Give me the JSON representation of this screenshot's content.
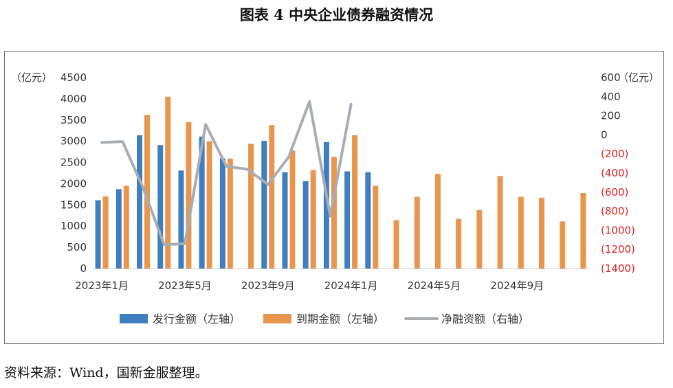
{
  "title": "图表 4  中央企业债券融资情况",
  "source": "资料来源：Wind，国新金服整理。",
  "colors": {
    "issue": "#3f7fbf",
    "maturity": "#e8954e",
    "net": "#a8adb4",
    "axis_text": "#333333",
    "negative_text": "#e02020"
  },
  "chart_data": {
    "type": "bar",
    "categories": [
      "2023-01",
      "2023-02",
      "2023-03",
      "2023-04",
      "2023-05",
      "2023-06",
      "2023-07",
      "2023-08",
      "2023-09",
      "2023-10",
      "2023-11",
      "2023-12",
      "2024-01",
      "2024-02",
      "2024-03",
      "2024-04",
      "2024-05",
      "2024-06",
      "2024-07",
      "2024-08",
      "2024-09",
      "2024-10",
      "2024-11",
      "2024-12"
    ],
    "x_tick_labels": [
      "2023年1月",
      "2023年5月",
      "2023年9月",
      "2024年1月",
      "2024年5月",
      "2024年9月"
    ],
    "x_tick_indices": [
      0,
      4,
      8,
      12,
      16,
      20
    ],
    "series": [
      {
        "name": "发行金额（左轴）",
        "axis": "left",
        "kind": "bar",
        "values": [
          1610,
          1870,
          3140,
          2910,
          2310,
          3110,
          2600,
          null,
          3010,
          2270,
          2060,
          2980,
          2290,
          2270,
          null,
          null,
          null,
          null,
          null,
          null,
          null,
          null,
          null,
          null
        ]
      },
      {
        "name": "到期金额（左轴）",
        "axis": "left",
        "kind": "bar",
        "values": [
          1700,
          1950,
          3620,
          4050,
          3450,
          3000,
          2590,
          2940,
          3380,
          2780,
          2320,
          2630,
          3140,
          1950,
          1140,
          1690,
          2230,
          1170,
          1380,
          2180,
          1690,
          1670,
          1110,
          1780
        ]
      },
      {
        "name": "净融资额（右轴）",
        "axis": "right",
        "kind": "line",
        "values": [
          -80,
          -70,
          -560,
          -1150,
          -1140,
          110,
          -330,
          -360,
          -520,
          -230,
          350,
          -850,
          320,
          null,
          null,
          null,
          null,
          null,
          null,
          null,
          null,
          null,
          null,
          null
        ]
      }
    ],
    "left_axis": {
      "label": "（亿元）",
      "ylim": [
        0,
        4500
      ],
      "ticks": [
        "0",
        "500",
        "1000",
        "1500",
        "2000",
        "2500",
        "3000",
        "3500",
        "4000",
        "4500"
      ]
    },
    "right_axis": {
      "label": "（亿元）",
      "ylim": [
        -1400,
        600
      ],
      "ticks": [
        "(1400)",
        "(1200)",
        "(1000)",
        "(800)",
        "(600)",
        "(400)",
        "(200)",
        "0",
        "200",
        "400",
        "600"
      ]
    },
    "legend": {
      "position": "bottom"
    },
    "grid": false
  }
}
